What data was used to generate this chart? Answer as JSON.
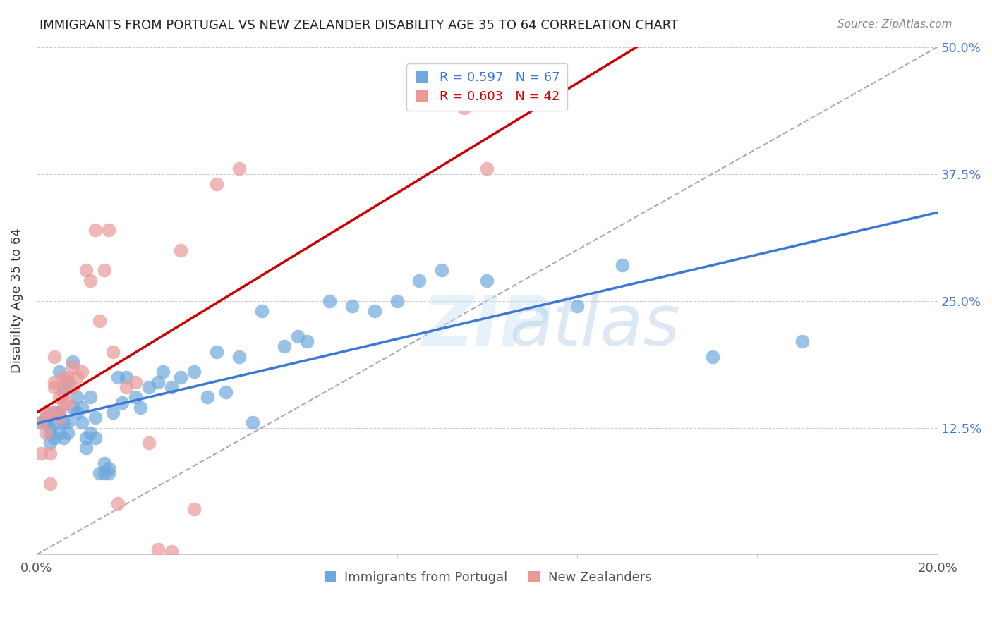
{
  "title": "IMMIGRANTS FROM PORTUGAL VS NEW ZEALANDER DISABILITY AGE 35 TO 64 CORRELATION CHART",
  "source": "Source: ZipAtlas.com",
  "ylabel": "Disability Age 35 to 64",
  "xlabel": "",
  "xlim": [
    0.0,
    0.2
  ],
  "ylim": [
    0.0,
    0.5
  ],
  "xticks": [
    0.0,
    0.04,
    0.08,
    0.12,
    0.16,
    0.2
  ],
  "xticklabels": [
    "0.0%",
    "",
    "",
    "",
    "",
    "20.0%"
  ],
  "yticks": [
    0.0,
    0.125,
    0.25,
    0.375,
    0.5
  ],
  "yticklabels": [
    "",
    "12.5%",
    "25.0%",
    "37.5%",
    "50.0%"
  ],
  "blue_color": "#6fa8dc",
  "pink_color": "#ea9999",
  "blue_line_color": "#3c78d8",
  "pink_line_color": "#cc0000",
  "blue_R": 0.597,
  "blue_N": 67,
  "pink_R": 0.603,
  "pink_N": 42,
  "watermark": "ZIPatlas",
  "legend_label_blue": "Immigrants from Portugal",
  "legend_label_pink": "New Zealanders",
  "blue_scatter_x": [
    0.001,
    0.002,
    0.002,
    0.003,
    0.003,
    0.003,
    0.004,
    0.004,
    0.004,
    0.005,
    0.005,
    0.005,
    0.006,
    0.006,
    0.006,
    0.007,
    0.007,
    0.007,
    0.008,
    0.008,
    0.009,
    0.009,
    0.01,
    0.01,
    0.011,
    0.011,
    0.012,
    0.012,
    0.013,
    0.013,
    0.014,
    0.015,
    0.015,
    0.016,
    0.016,
    0.017,
    0.018,
    0.019,
    0.02,
    0.022,
    0.023,
    0.025,
    0.027,
    0.028,
    0.03,
    0.032,
    0.035,
    0.038,
    0.04,
    0.042,
    0.045,
    0.048,
    0.05,
    0.055,
    0.058,
    0.06,
    0.065,
    0.07,
    0.075,
    0.08,
    0.085,
    0.09,
    0.1,
    0.12,
    0.13,
    0.15,
    0.17
  ],
  "blue_scatter_y": [
    0.13,
    0.13,
    0.135,
    0.12,
    0.125,
    0.11,
    0.13,
    0.115,
    0.14,
    0.12,
    0.18,
    0.14,
    0.115,
    0.13,
    0.16,
    0.12,
    0.17,
    0.13,
    0.19,
    0.145,
    0.155,
    0.14,
    0.145,
    0.13,
    0.105,
    0.115,
    0.155,
    0.12,
    0.135,
    0.115,
    0.08,
    0.09,
    0.08,
    0.08,
    0.085,
    0.14,
    0.175,
    0.15,
    0.175,
    0.155,
    0.145,
    0.165,
    0.17,
    0.18,
    0.165,
    0.175,
    0.18,
    0.155,
    0.2,
    0.16,
    0.195,
    0.13,
    0.24,
    0.205,
    0.215,
    0.21,
    0.25,
    0.245,
    0.24,
    0.25,
    0.27,
    0.28,
    0.27,
    0.245,
    0.285,
    0.195,
    0.21
  ],
  "pink_scatter_x": [
    0.001,
    0.001,
    0.002,
    0.002,
    0.003,
    0.003,
    0.003,
    0.004,
    0.004,
    0.004,
    0.005,
    0.005,
    0.005,
    0.006,
    0.006,
    0.006,
    0.007,
    0.007,
    0.008,
    0.008,
    0.009,
    0.01,
    0.011,
    0.012,
    0.013,
    0.014,
    0.015,
    0.016,
    0.017,
    0.018,
    0.02,
    0.022,
    0.025,
    0.027,
    0.03,
    0.032,
    0.035,
    0.04,
    0.045,
    0.095,
    0.1,
    0.115
  ],
  "pink_scatter_y": [
    0.1,
    0.13,
    0.12,
    0.14,
    0.07,
    0.1,
    0.14,
    0.165,
    0.17,
    0.195,
    0.14,
    0.155,
    0.135,
    0.15,
    0.165,
    0.175,
    0.15,
    0.175,
    0.165,
    0.185,
    0.175,
    0.18,
    0.28,
    0.27,
    0.32,
    0.23,
    0.28,
    0.32,
    0.2,
    0.05,
    0.165,
    0.17,
    0.11,
    0.005,
    0.003,
    0.3,
    0.045,
    0.365,
    0.38,
    0.44,
    0.38,
    0.47
  ]
}
